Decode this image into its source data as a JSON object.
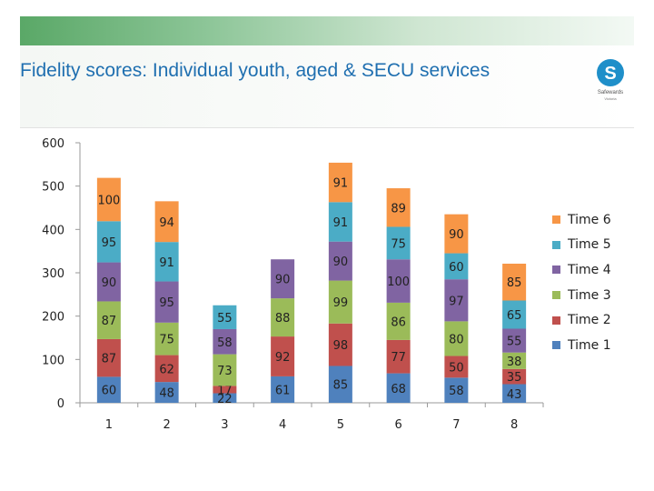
{
  "header": {
    "title": "Fidelity scores: Individual youth, aged & SECU services"
  },
  "logo": {
    "letter": "S",
    "caption": "Safewards",
    "caption2": "Victoria",
    "color": "#1f8fc9"
  },
  "colors": {
    "Time 1": "#4f81bd",
    "Time 2": "#c0504d",
    "Time 3": "#9bbb59",
    "Time 4": "#8064a2",
    "Time 5": "#4bacc6",
    "Time 6": "#f79646"
  },
  "chart_data": {
    "type": "bar",
    "stacked": true,
    "title": "Fidelity scores: Individual youth, aged & SECU services",
    "categories": [
      "1",
      "2",
      "3",
      "4",
      "5",
      "6",
      "7",
      "8"
    ],
    "series": [
      {
        "name": "Time 1",
        "values": [
          60,
          48,
          22,
          61,
          85,
          68,
          58,
          43
        ]
      },
      {
        "name": "Time 2",
        "values": [
          87,
          62,
          17,
          92,
          98,
          77,
          50,
          35
        ]
      },
      {
        "name": "Time 3",
        "values": [
          87,
          75,
          73,
          88,
          99,
          86,
          80,
          38
        ]
      },
      {
        "name": "Time 4",
        "values": [
          90,
          95,
          58,
          90,
          90,
          100,
          97,
          55
        ]
      },
      {
        "name": "Time 5",
        "values": [
          95,
          91,
          55,
          null,
          91,
          75,
          60,
          65
        ]
      },
      {
        "name": "Time 6",
        "values": [
          100,
          94,
          null,
          null,
          91,
          89,
          90,
          85
        ]
      }
    ],
    "yticks": [
      0,
      100,
      200,
      300,
      400,
      500,
      600
    ],
    "ylim": [
      0,
      600
    ],
    "xlabel": "",
    "ylabel": "",
    "legend_position": "right",
    "grid": false
  }
}
